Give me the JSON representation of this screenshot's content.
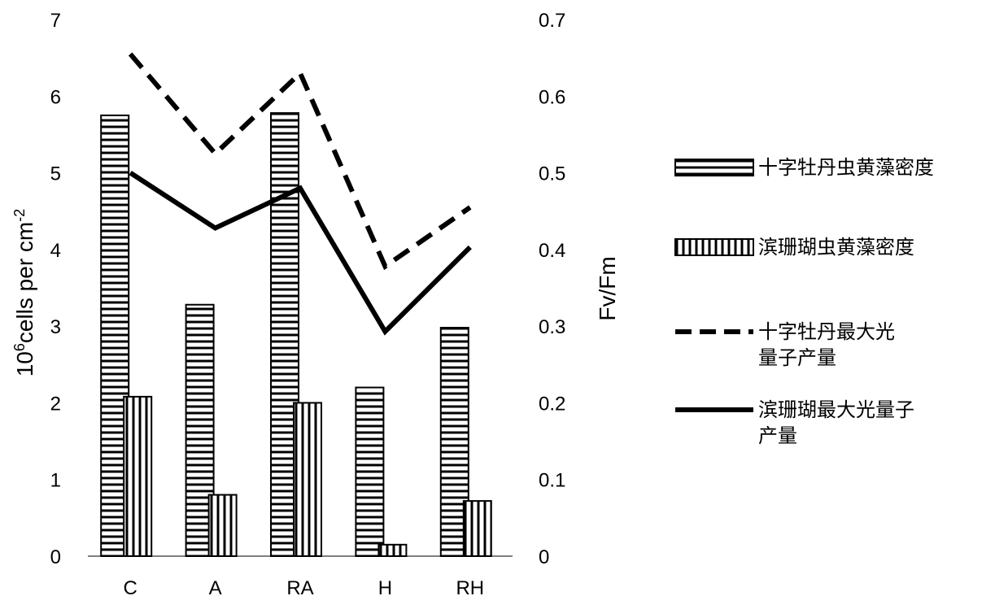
{
  "chart_data": {
    "type": "bar+line",
    "categories": [
      "C",
      "A",
      "RA",
      "H",
      "RH"
    ],
    "left_axis": {
      "label_prefix": "10",
      "label_exp": "6",
      "label_mid": "cells per cm",
      "label_exp2": "-2",
      "range": [
        0,
        7
      ],
      "ticks": [
        "0",
        "1",
        "2",
        "3",
        "4",
        "5",
        "6",
        "7"
      ]
    },
    "right_axis": {
      "label": "Fv/Fm",
      "range": [
        0,
        0.7
      ],
      "ticks": [
        "0",
        "0.1",
        "0.2",
        "0.3",
        "0.4",
        "0.5",
        "0.6",
        "0.7"
      ]
    },
    "bar_series": [
      {
        "name": "十字牡丹虫黄藻密度",
        "values": [
          5.75,
          3.28,
          5.78,
          2.2,
          2.98
        ],
        "pattern": "horizontal"
      },
      {
        "name": "滨珊瑚虫黄藻密度",
        "values": [
          2.08,
          0.8,
          2.0,
          0.15,
          0.72
        ],
        "pattern": "vertical"
      }
    ],
    "line_series": [
      {
        "name": "十字牡丹最大光量子产量",
        "values": [
          0.655,
          0.525,
          0.63,
          0.378,
          0.455
        ],
        "style": "dashed"
      },
      {
        "name": "滨珊瑚最大光量子产量",
        "values": [
          0.5,
          0.428,
          0.48,
          0.293,
          0.403
        ],
        "style": "solid"
      }
    ],
    "legend_position": "right",
    "grid": false
  },
  "legend": [
    {
      "label": "十字牡丹虫黄藻密度"
    },
    {
      "label": "滨珊瑚虫黄藻密度"
    },
    {
      "label": "十字牡丹最大光量子产量"
    },
    {
      "label": "滨珊瑚最大光量子产量"
    }
  ]
}
